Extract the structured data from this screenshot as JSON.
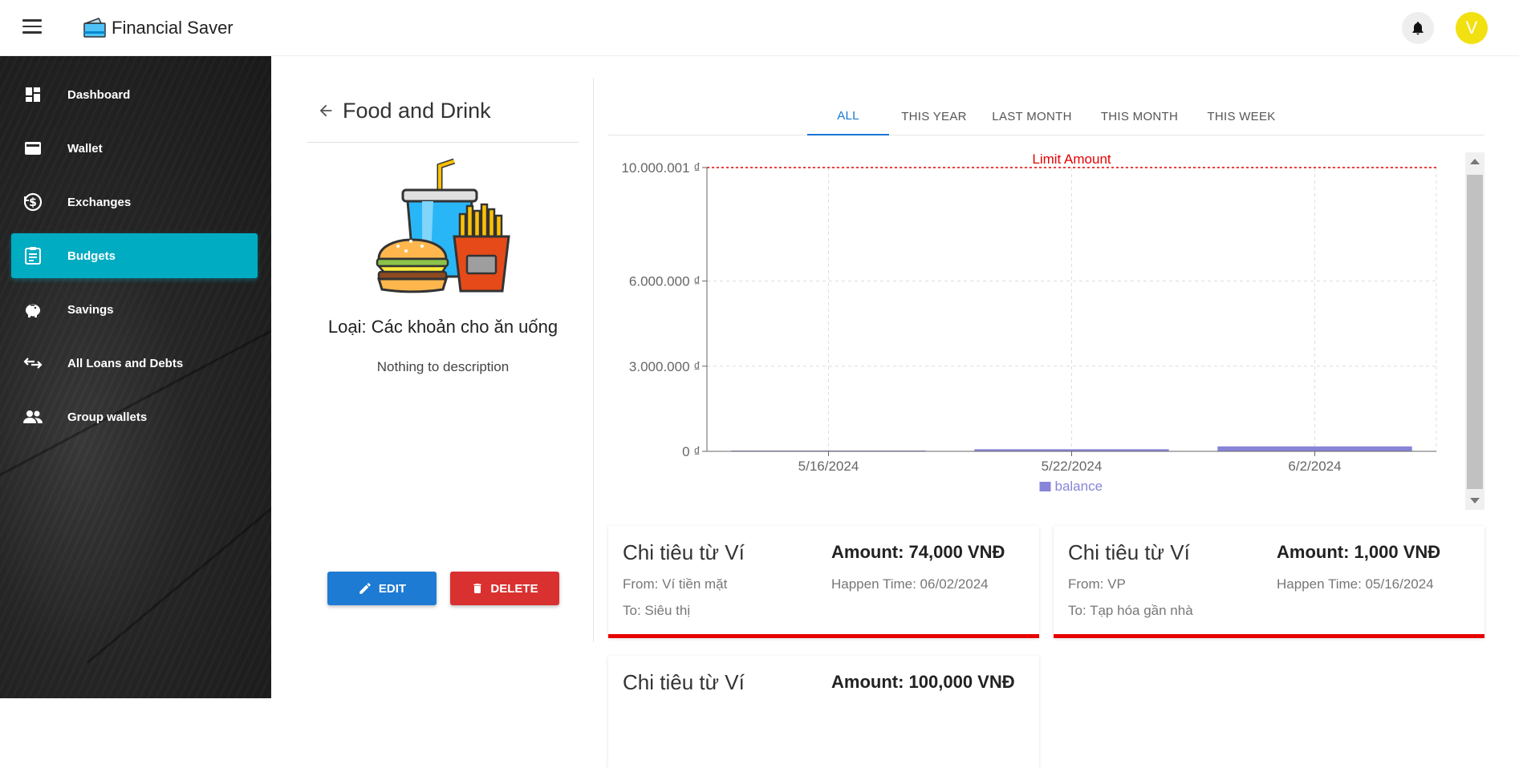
{
  "header": {
    "app_title": "Financial Saver",
    "avatar_letter": "V"
  },
  "sidebar": {
    "items": [
      {
        "label": "Dashboard",
        "icon": "dashboard-icon",
        "active": false
      },
      {
        "label": "Wallet",
        "icon": "wallet-icon",
        "active": false
      },
      {
        "label": "Exchanges",
        "icon": "exchange-icon",
        "active": false
      },
      {
        "label": "Budgets",
        "icon": "budget-icon",
        "active": true
      },
      {
        "label": "Savings",
        "icon": "piggy-bank-icon",
        "active": false
      },
      {
        "label": "All Loans and Debts",
        "icon": "transfer-arrows-icon",
        "active": false
      },
      {
        "label": "Group wallets",
        "icon": "group-icon",
        "active": false
      }
    ],
    "accent": "#00acc1"
  },
  "budget": {
    "title": "Food and Drink",
    "category": "Loại: Các khoản cho ăn uống",
    "description": "Nothing to description",
    "edit_label": "EDIT",
    "delete_label": "DELETE"
  },
  "tabs": [
    {
      "label": "ALL",
      "active": true
    },
    {
      "label": "THIS YEAR",
      "active": false
    },
    {
      "label": "LAST MONTH",
      "active": false
    },
    {
      "label": "THIS MONTH",
      "active": false
    },
    {
      "label": "THIS WEEK",
      "active": false
    }
  ],
  "chart_data": {
    "type": "bar",
    "categories": [
      "5/16/2024",
      "5/22/2024",
      "6/2/2024"
    ],
    "series": [
      {
        "name": "balance",
        "values": [
          1000,
          74000,
          174000
        ],
        "color": "#8884d8"
      }
    ],
    "y_ticks": [
      {
        "value": 0,
        "label": "0 ₫"
      },
      {
        "value": 3000000,
        "label": "3.000.000 ₫"
      },
      {
        "value": 6000000,
        "label": "6.000.000 ₫"
      },
      {
        "value": 10000001,
        "label": "10.000.001 ₫"
      }
    ],
    "ylim": [
      0,
      10000001
    ],
    "reference_line": {
      "value": 10000001,
      "label": "Limit Amount",
      "color": "#e60000"
    },
    "grid": true,
    "legend_position": "bottom-center"
  },
  "transactions": [
    {
      "title": "Chi tiêu từ Ví",
      "amount": "Amount: 74,000 VNĐ",
      "from": "From: Ví tiền mặt",
      "time": "Happen Time: 06/02/2024",
      "to": "To: Siêu thị"
    },
    {
      "title": "Chi tiêu từ Ví",
      "amount": "Amount: 1,000 VNĐ",
      "from": "From: VP",
      "time": "Happen Time: 05/16/2024",
      "to": "To: Tạp hóa gần nhà"
    },
    {
      "title": "Chi tiêu từ Ví",
      "amount": "Amount: 100,000 VNĐ",
      "from": "",
      "time": "",
      "to": ""
    }
  ]
}
